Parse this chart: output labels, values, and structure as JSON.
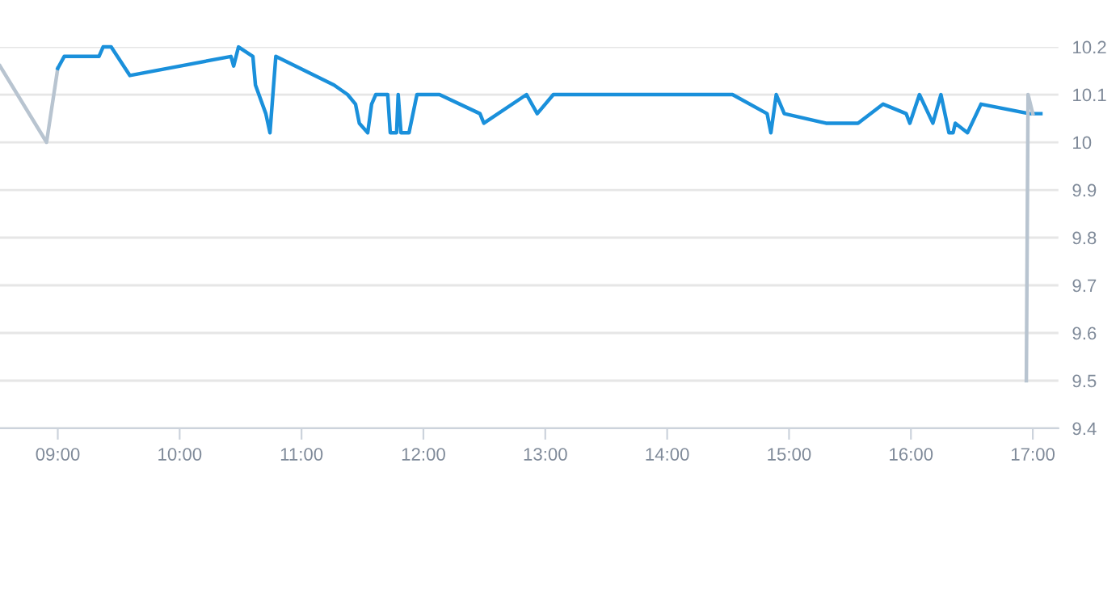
{
  "chart_data": {
    "type": "line",
    "series": [
      {
        "color": "#b8c4d0",
        "x": [
          8.526,
          8.908,
          9.0
        ],
        "values": [
          10.16,
          10.0,
          10.155
        ]
      },
      {
        "color": "#1a90db",
        "x": [
          9.0,
          9.053,
          9.338,
          9.372,
          9.438,
          9.592,
          10.421,
          10.443,
          10.483,
          10.601,
          10.622,
          10.707,
          10.741,
          10.789,
          11.267,
          11.378,
          11.443,
          11.474,
          11.543,
          11.575,
          11.609,
          11.707,
          11.728,
          11.78,
          11.793,
          11.816,
          11.882,
          11.947,
          12.132,
          12.464,
          12.496,
          12.846,
          12.934,
          13.066,
          14.536,
          14.82,
          14.851,
          14.895,
          14.961,
          15.303,
          15.566,
          15.772,
          15.961,
          15.991,
          16.07,
          16.18,
          16.246,
          16.312,
          16.346,
          16.364,
          16.464,
          16.575,
          16.97,
          17.066
        ],
        "values": [
          10.155,
          10.18,
          10.18,
          10.2,
          10.2,
          10.14,
          10.18,
          10.16,
          10.2,
          10.18,
          10.12,
          10.06,
          10.02,
          10.18,
          10.12,
          10.1,
          10.08,
          10.04,
          10.02,
          10.08,
          10.1,
          10.1,
          10.02,
          10.02,
          10.1,
          10.02,
          10.02,
          10.1,
          10.1,
          10.06,
          10.04,
          10.1,
          10.06,
          10.1,
          10.1,
          10.06,
          10.02,
          10.1,
          10.06,
          10.04,
          10.04,
          10.08,
          10.06,
          10.04,
          10.1,
          10.04,
          10.1,
          10.02,
          10.02,
          10.04,
          10.02,
          10.08,
          10.06,
          10.06
        ]
      },
      {
        "color": "#b8c4d0",
        "x": [
          16.947,
          16.961,
          17.0
        ],
        "values": [
          9.5,
          10.1,
          10.06
        ]
      }
    ],
    "xlim": [
      8.526,
      17.21
    ],
    "xticks": [
      {
        "value": 9,
        "label": "09:00"
      },
      {
        "value": 10,
        "label": "10:00"
      },
      {
        "value": 11,
        "label": "11:00"
      },
      {
        "value": 12,
        "label": "12:00"
      },
      {
        "value": 13,
        "label": "13:00"
      },
      {
        "value": 14,
        "label": "14:00"
      },
      {
        "value": 15,
        "label": "15:00"
      },
      {
        "value": 16,
        "label": "16:00"
      },
      {
        "value": 17,
        "label": "17:00"
      }
    ],
    "ylim": [
      9.4,
      10.2
    ],
    "yticks": [
      9.4,
      9.5,
      9.6,
      9.7,
      9.8,
      9.9,
      {
        "value": 10,
        "label": "10"
      },
      10.1,
      10.2
    ],
    "grid": "y",
    "marker": "none",
    "line_style": "solid"
  }
}
